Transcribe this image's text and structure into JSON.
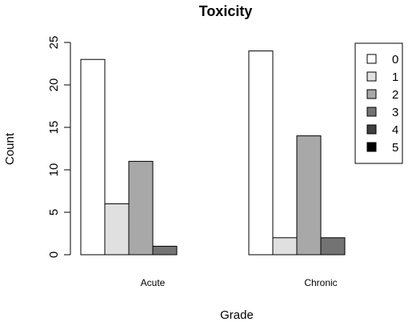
{
  "chart_data": {
    "type": "bar",
    "title": "Toxicity",
    "xlabel": "Grade",
    "ylabel": "Count",
    "ylim": [
      0,
      25
    ],
    "yticks": [
      0,
      5,
      10,
      15,
      20,
      25
    ],
    "categories": [
      "Acute",
      "Chronic"
    ],
    "series": [
      {
        "name": "0",
        "values": [
          23,
          24
        ],
        "color": "#ffffff"
      },
      {
        "name": "1",
        "values": [
          6,
          2
        ],
        "color": "#e0e0e0"
      },
      {
        "name": "2",
        "values": [
          11,
          14
        ],
        "color": "#a8a8a8"
      },
      {
        "name": "3",
        "values": [
          1,
          2
        ],
        "color": "#737373"
      },
      {
        "name": "4",
        "values": [
          0,
          0
        ],
        "color": "#404040"
      },
      {
        "name": "5",
        "values": [
          0,
          0
        ],
        "color": "#000000"
      }
    ],
    "legend_position": "top-right",
    "grid": false
  }
}
